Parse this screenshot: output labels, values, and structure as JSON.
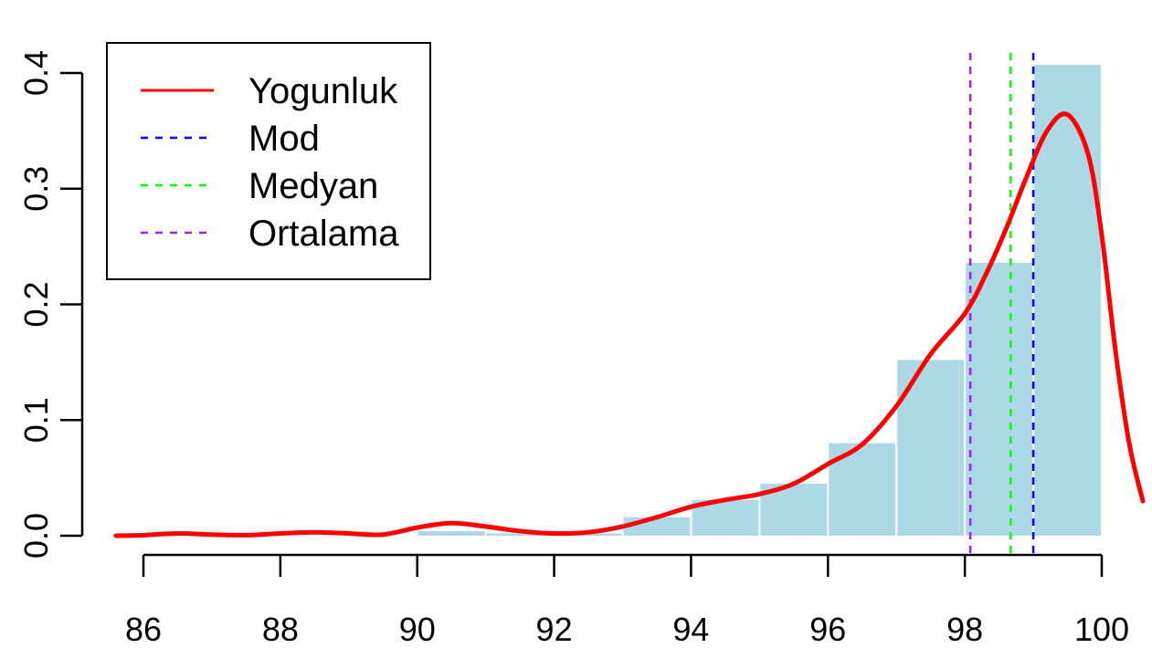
{
  "chart_data": {
    "type": "histogram",
    "title": "",
    "xlabel": "",
    "ylabel": "",
    "xlim": [
      85.6,
      100.6
    ],
    "ylim": [
      0,
      0.4
    ],
    "x_ticks": [
      "86",
      "88",
      "90",
      "92",
      "94",
      "96",
      "98",
      "100"
    ],
    "y_ticks": [
      "0.0",
      "0.1",
      "0.2",
      "0.3",
      "0.4"
    ],
    "histogram": {
      "name": "",
      "color": "#ADD8E6",
      "bins": [
        {
          "x0": 90,
          "x1": 91,
          "density": 0.004
        },
        {
          "x0": 91,
          "x1": 92,
          "density": 0.002
        },
        {
          "x0": 92,
          "x1": 93,
          "density": 0.002
        },
        {
          "x0": 93,
          "x1": 94,
          "density": 0.016
        },
        {
          "x0": 94,
          "x1": 95,
          "density": 0.031
        },
        {
          "x0": 95,
          "x1": 96,
          "density": 0.045
        },
        {
          "x0": 96,
          "x1": 97,
          "density": 0.08
        },
        {
          "x0": 97,
          "x1": 98,
          "density": 0.152
        },
        {
          "x0": 98,
          "x1": 99,
          "density": 0.236
        },
        {
          "x0": 99,
          "x1": 100,
          "density": 0.407
        }
      ]
    },
    "density": {
      "name": "Yogunluk",
      "color": "#FF0000",
      "x": [
        85.6,
        86.0,
        86.5,
        87.0,
        87.5,
        88.0,
        88.5,
        89.0,
        89.5,
        90.0,
        90.5,
        91.0,
        91.5,
        92.0,
        92.5,
        93.0,
        93.5,
        94.0,
        94.5,
        95.0,
        95.5,
        96.0,
        96.5,
        97.0,
        97.5,
        98.0,
        98.3,
        98.6,
        98.9,
        99.2,
        99.5,
        99.8,
        100.0,
        100.2,
        100.4,
        100.6
      ],
      "y": [
        0.0,
        0.0005,
        0.002,
        0.001,
        0.0005,
        0.002,
        0.003,
        0.002,
        0.001,
        0.007,
        0.011,
        0.008,
        0.004,
        0.002,
        0.003,
        0.008,
        0.016,
        0.025,
        0.031,
        0.036,
        0.045,
        0.062,
        0.079,
        0.112,
        0.157,
        0.192,
        0.225,
        0.265,
        0.31,
        0.35,
        0.364,
        0.33,
        0.26,
        0.16,
        0.08,
        0.03
      ]
    },
    "vlines": [
      {
        "name": "Mod",
        "x": 99.0,
        "color": "#0000FF",
        "style": "dashed"
      },
      {
        "name": "Medyan",
        "x": 98.67,
        "color": "#00FF00",
        "style": "dashed"
      },
      {
        "name": "Ortalama",
        "x": 98.08,
        "color": "#A020F0",
        "style": "dashed"
      }
    ],
    "legend": {
      "position": "top-left",
      "entries": [
        {
          "label": "Yogunluk",
          "color": "#FF0000",
          "style": "solid"
        },
        {
          "label": "Mod",
          "color": "#0000FF",
          "style": "dashed"
        },
        {
          "label": "Medyan",
          "color": "#00FF00",
          "style": "dashed"
        },
        {
          "label": "Ortalama",
          "color": "#A020F0",
          "style": "dashed"
        }
      ]
    },
    "grid": false
  }
}
